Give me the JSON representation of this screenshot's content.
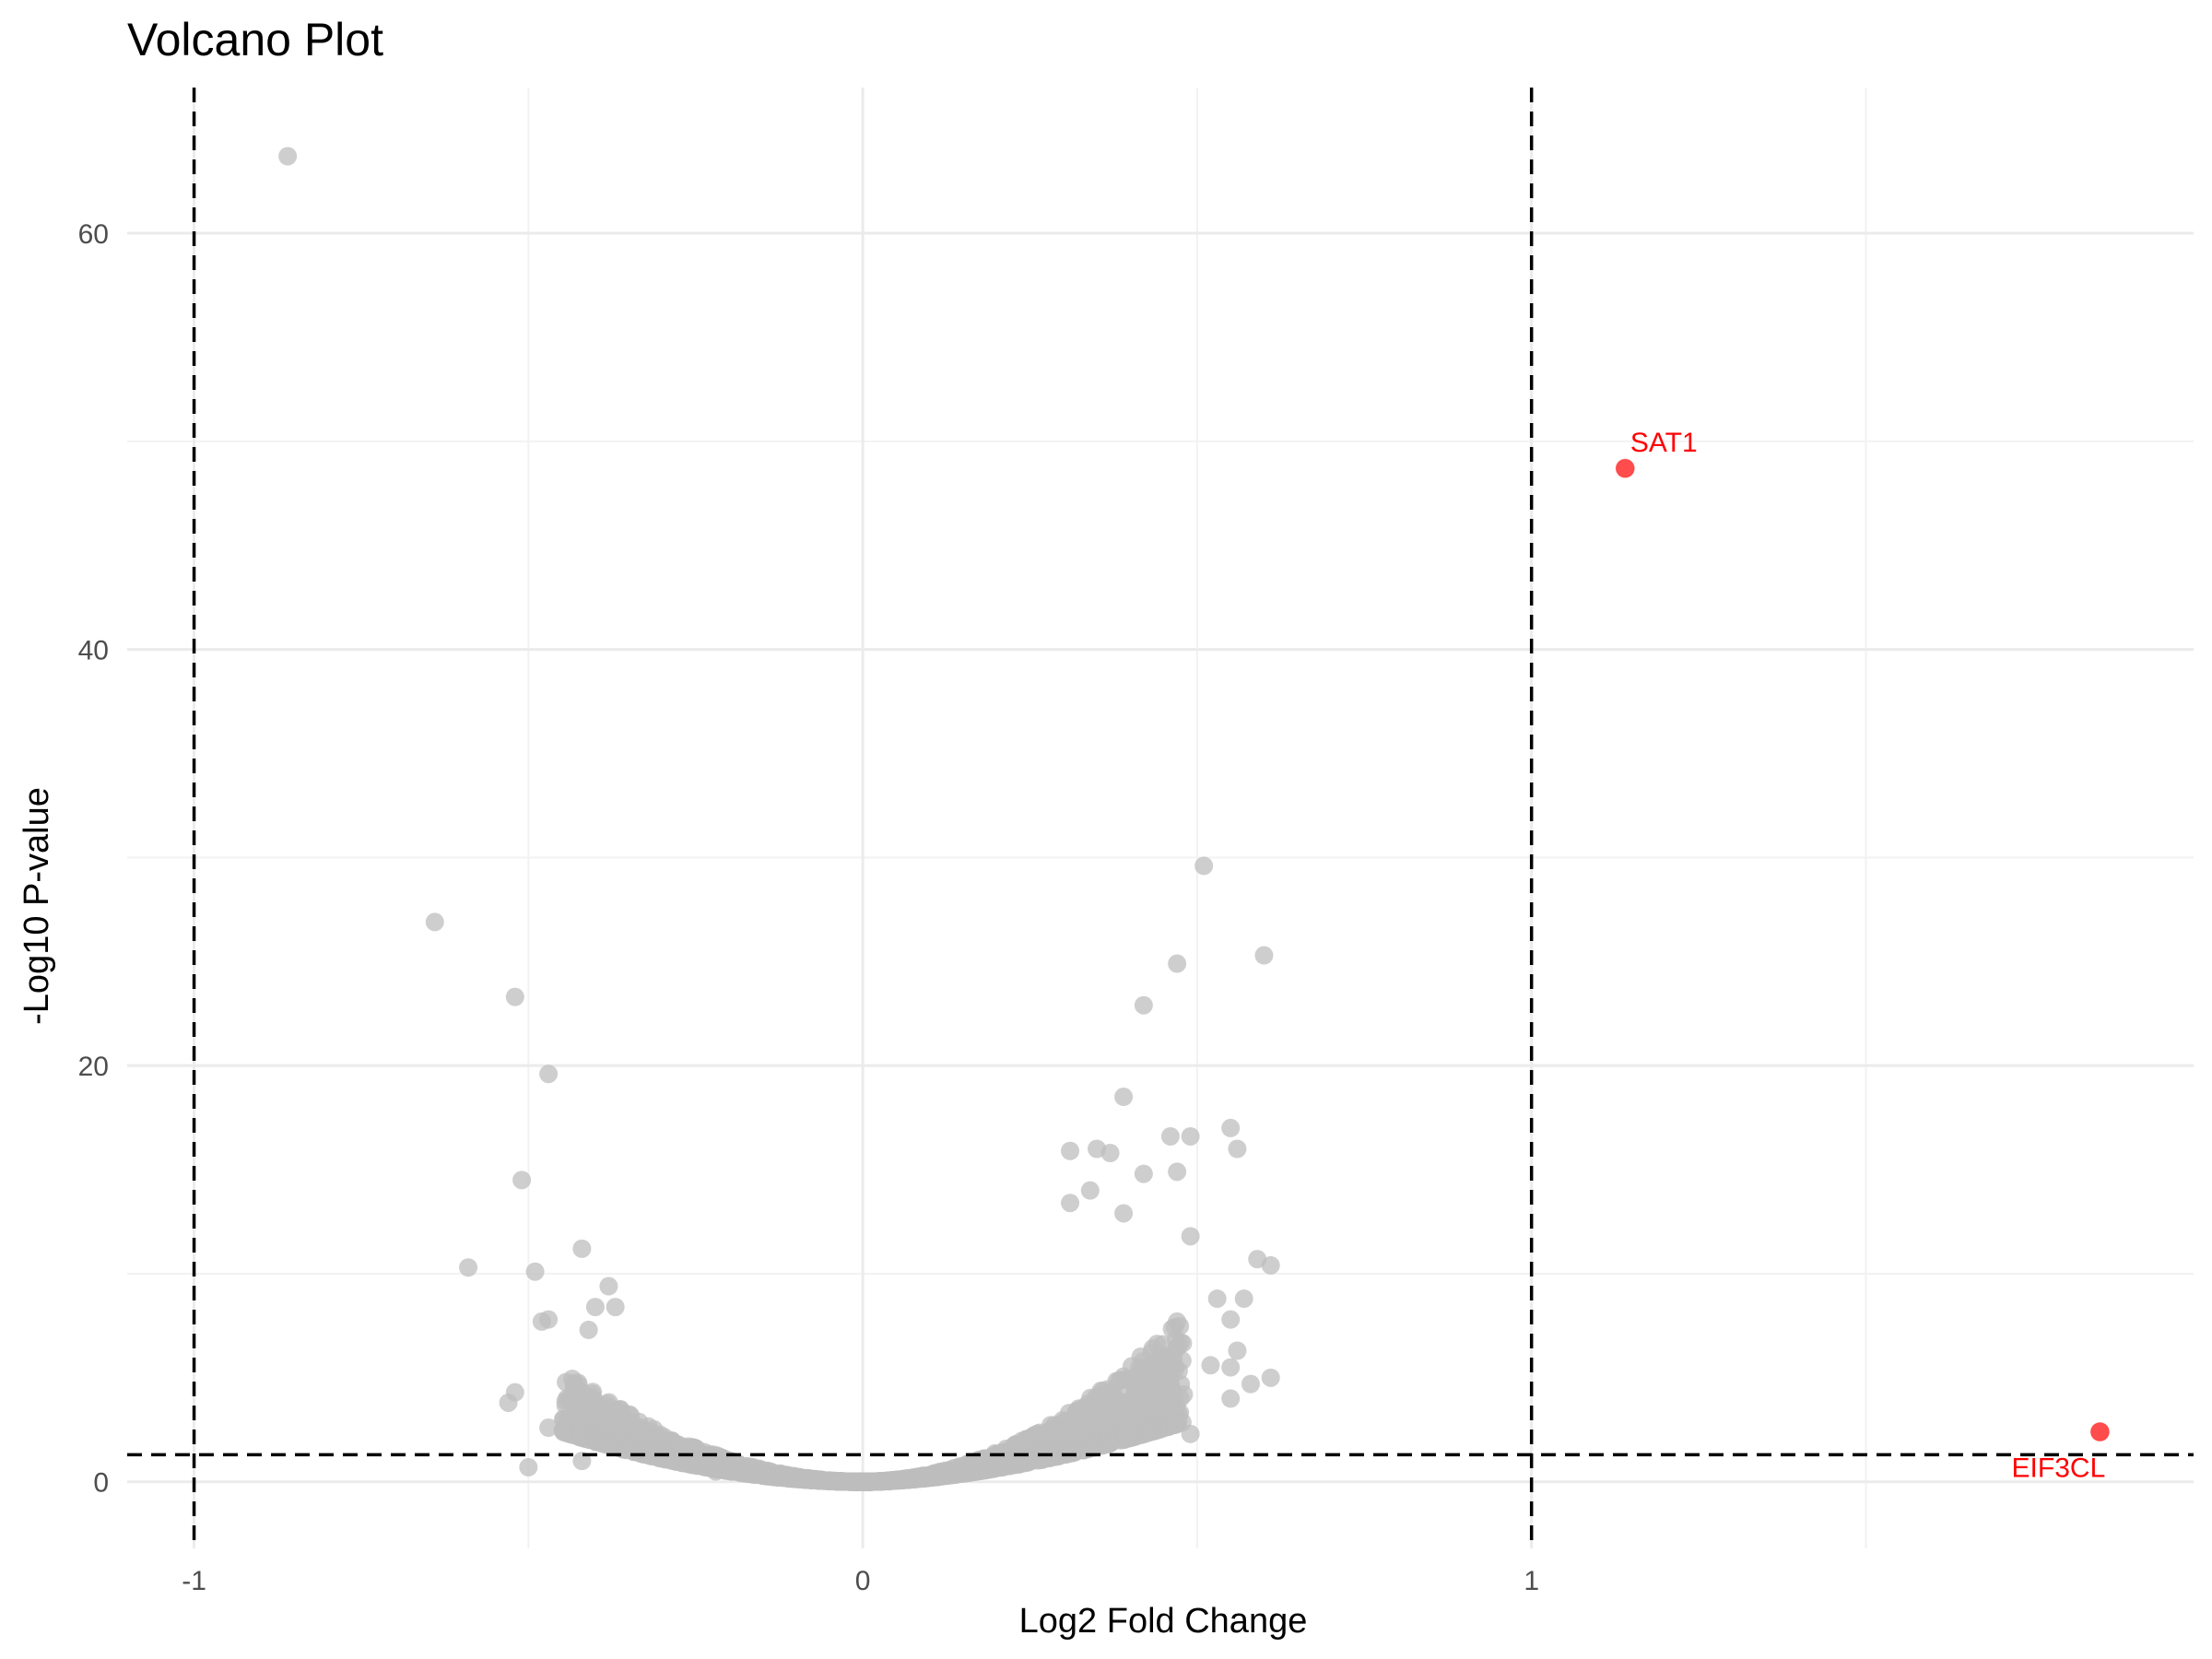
{
  "chart_data": {
    "type": "scatter",
    "title": "Volcano Plot",
    "xlabel": "Log2 Fold Change",
    "ylabel": "-Log10 P-value",
    "xlim": [
      -1.1,
      1.99
    ],
    "ylim": [
      -3.2,
      67
    ],
    "x_ticks": [
      {
        "value": -1,
        "label": "-1"
      },
      {
        "value": 0,
        "label": "0"
      },
      {
        "value": 1,
        "label": "1"
      }
    ],
    "y_ticks": [
      {
        "value": 0,
        "label": "0"
      },
      {
        "value": 20,
        "label": "20"
      },
      {
        "value": 40,
        "label": "40"
      },
      {
        "value": 60,
        "label": "60"
      }
    ],
    "x_minor_ticks": [
      -0.5,
      0.5,
      1.5
    ],
    "y_minor_ticks": [
      10,
      30,
      50
    ],
    "grid": true,
    "thresholds": {
      "log2fc": [
        -1,
        1
      ],
      "neg_log10_p": 1.3
    },
    "colors": {
      "not_significant": "#bebebe",
      "significant": "#ff0000",
      "threshold_line": "#000000"
    },
    "significant_points": [
      {
        "gene": "SAT1",
        "x": 1.14,
        "y": 48.7
      },
      {
        "gene": "EIF3CL",
        "x": 1.85,
        "y": 2.4
      }
    ],
    "outlier_points": [
      [
        -0.86,
        63.7
      ],
      [
        -0.64,
        26.9
      ],
      [
        -0.52,
        23.3
      ],
      [
        -0.47,
        19.6
      ],
      [
        -0.51,
        14.5
      ],
      [
        -0.59,
        10.3
      ],
      [
        -0.49,
        10.1
      ],
      [
        -0.42,
        11.2
      ],
      [
        -0.47,
        7.8
      ],
      [
        -0.48,
        7.7
      ],
      [
        -0.38,
        9.4
      ],
      [
        -0.37,
        8.4
      ],
      [
        -0.4,
        8.4
      ],
      [
        -0.41,
        7.3
      ],
      [
        -0.52,
        4.3
      ],
      [
        -0.53,
        3.8
      ],
      [
        -0.47,
        2.6
      ],
      [
        -0.5,
        0.7
      ],
      [
        -0.42,
        1.0
      ],
      [
        -0.22,
        0.5
      ],
      [
        0.51,
        29.6
      ],
      [
        0.6,
        25.3
      ],
      [
        0.47,
        24.9
      ],
      [
        0.42,
        22.9
      ],
      [
        0.39,
        18.5
      ],
      [
        0.55,
        17.0
      ],
      [
        0.56,
        16.0
      ],
      [
        0.49,
        16.6
      ],
      [
        0.46,
        16.6
      ],
      [
        0.35,
        16.0
      ],
      [
        0.31,
        15.9
      ],
      [
        0.37,
        15.8
      ],
      [
        0.42,
        14.8
      ],
      [
        0.47,
        14.9
      ],
      [
        0.34,
        14.0
      ],
      [
        0.31,
        13.4
      ],
      [
        0.39,
        12.9
      ],
      [
        0.49,
        11.8
      ],
      [
        0.59,
        10.7
      ],
      [
        0.61,
        10.4
      ],
      [
        0.57,
        8.8
      ],
      [
        0.55,
        7.8
      ],
      [
        0.53,
        8.8
      ],
      [
        0.56,
        6.3
      ],
      [
        0.61,
        5.0
      ],
      [
        0.58,
        4.7
      ],
      [
        0.52,
        5.6
      ],
      [
        0.55,
        5.5
      ],
      [
        0.48,
        4.2
      ],
      [
        0.55,
        4.0
      ],
      [
        0.49,
        2.3
      ],
      [
        0.43,
        2.5
      ],
      [
        0.47,
        7.7
      ],
      [
        0.46,
        4.0
      ]
    ],
    "bulk": {
      "n_points": 2400,
      "description": "dense cloud of non-significant genes forming V shape",
      "left_arm": {
        "x_range": [
          -0.45,
          0
        ],
        "y_max_at_edge": 7
      },
      "right_arm": {
        "x_range": [
          0,
          0.48
        ],
        "y_max_at_edge": 11
      }
    }
  }
}
